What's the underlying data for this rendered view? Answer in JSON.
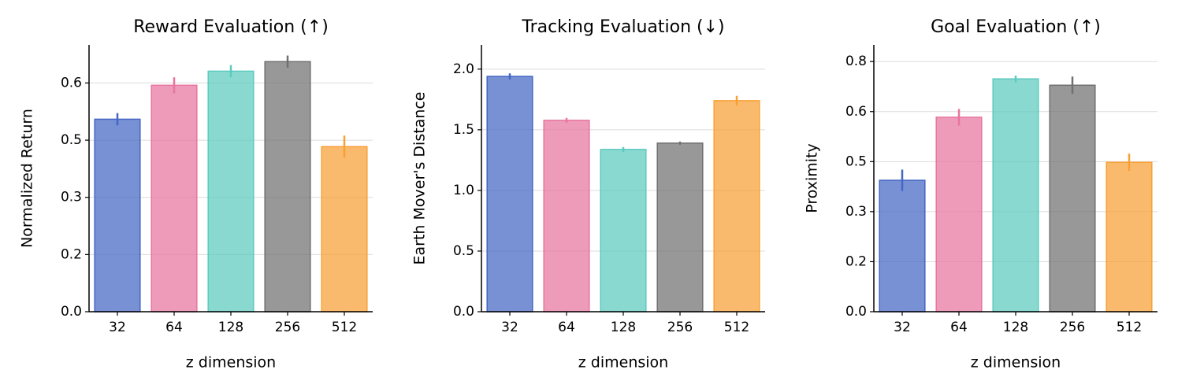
{
  "chart_data": [
    {
      "type": "bar",
      "title": "Reward Evaluation (↑)",
      "xlabel": "z dimension",
      "ylabel": "Normalized Return",
      "categories": [
        "32",
        "64",
        "128",
        "256",
        "512"
      ],
      "values": [
        0.505,
        0.594,
        0.631,
        0.656,
        0.433
      ],
      "errors": [
        0.016,
        0.021,
        0.016,
        0.016,
        0.029
      ],
      "colors": [
        "#4466c4",
        "#e8749f",
        "#5ccabf",
        "#707070",
        "#f8a034"
      ],
      "ylim": [
        0,
        0.7
      ],
      "yticks": [
        {
          "value": 0,
          "label": "0.0"
        },
        {
          "value": 0.15,
          "label": "0.2"
        },
        0.3,
        {
          "value": 0.45,
          "label": "0.5"
        },
        0.6
      ],
      "grid": true
    },
    {
      "type": "bar",
      "title": "Tracking Evaluation (↓)",
      "xlabel": "z dimension",
      "ylabel": "Earth Mover's Distance",
      "categories": [
        "32",
        "64",
        "128",
        "256",
        "512"
      ],
      "values": [
        1.94,
        1.578,
        1.338,
        1.39,
        1.74
      ],
      "errors": [
        0.025,
        0.02,
        0.02,
        0.013,
        0.04
      ],
      "colors": [
        "#4466c4",
        "#e8749f",
        "#5ccabf",
        "#707070",
        "#f8a034"
      ],
      "ylim": [
        0,
        2.2
      ],
      "yticks": [
        {
          "value": 0,
          "label": "0.0"
        },
        0.5,
        {
          "value": 1,
          "label": "1.0"
        },
        1.5,
        {
          "value": 2,
          "label": "2.0"
        }
      ],
      "grid": true
    },
    {
      "type": "bar",
      "title": "Goal Evaluation (↑)",
      "xlabel": "z dimension",
      "ylabel": "Proximity",
      "categories": [
        "32",
        "64",
        "128",
        "256",
        "512"
      ],
      "values": [
        0.394,
        0.583,
        0.698,
        0.679,
        0.448
      ],
      "errors": [
        0.032,
        0.025,
        0.01,
        0.026,
        0.026
      ],
      "colors": [
        "#4466c4",
        "#e8749f",
        "#5ccabf",
        "#707070",
        "#f8a034"
      ],
      "ylim": [
        0,
        0.8
      ],
      "yticks": [
        {
          "value": 0,
          "label": "0.0"
        },
        {
          "value": 0.15,
          "label": "0.2"
        },
        0.3,
        {
          "value": 0.45,
          "label": "0.5"
        },
        0.6,
        {
          "value": 0.75,
          "label": "0.8"
        }
      ],
      "grid": true
    }
  ]
}
